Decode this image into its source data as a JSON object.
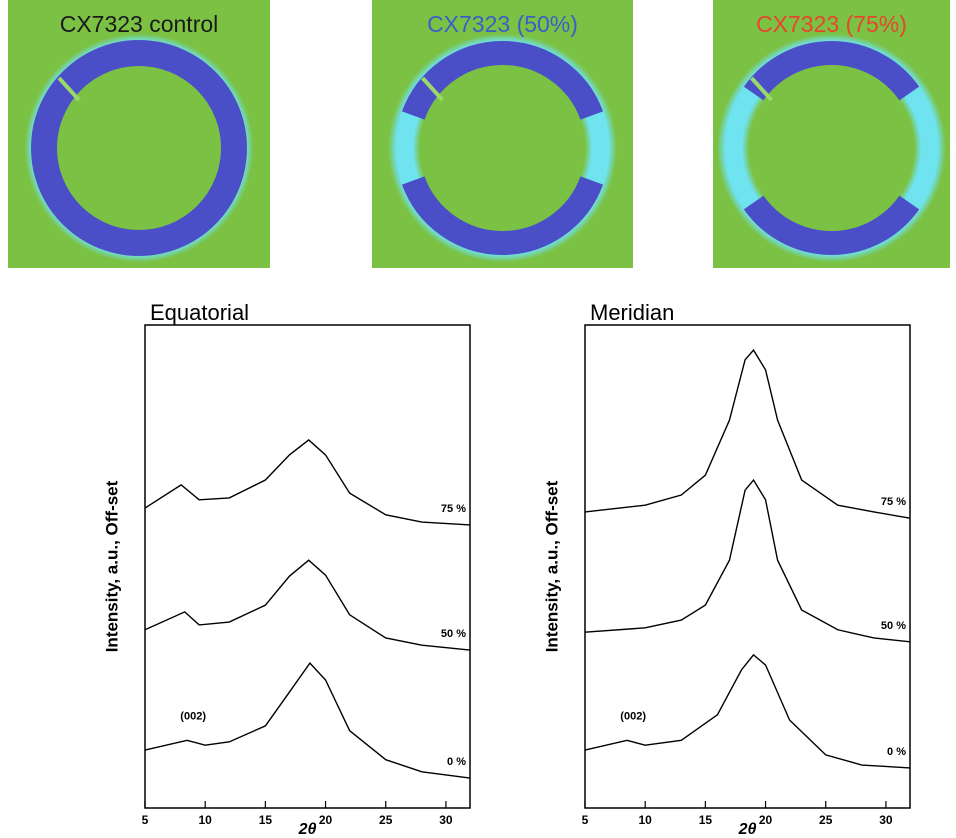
{
  "panels": [
    {
      "label": "CX7323 control",
      "color": "#1a1a1a"
    },
    {
      "label": "CX7323 (50%)",
      "color": "#3a5fc8"
    },
    {
      "label": "CX7323 (75%)",
      "color": "#e8452c"
    }
  ],
  "chart_data": [
    {
      "type": "line",
      "title": "Equatorial",
      "x_label": "2θ",
      "y_label": "Intensity, a.u., Off-set",
      "xlim": [
        5,
        32
      ],
      "xticks": [
        5,
        10,
        15,
        20,
        25,
        30
      ],
      "ylim": [
        0,
        100
      ],
      "annotation": "(002)",
      "color": "#000000",
      "series": [
        {
          "name": "0 %",
          "x": [
            5,
            8.5,
            10,
            12,
            15,
            17,
            18.7,
            20,
            22,
            25,
            28,
            32
          ],
          "values": [
            12,
            14,
            13,
            13.7,
            17,
            24,
            30,
            26.5,
            16,
            10,
            7.5,
            6.2
          ]
        },
        {
          "name": "50 %",
          "x": [
            5,
            8.3,
            9.5,
            12,
            15,
            17,
            18.6,
            20,
            22,
            25,
            28,
            32
          ],
          "values": [
            36.9,
            40.6,
            37.9,
            38.5,
            42,
            48,
            51.3,
            48.2,
            40,
            35.2,
            33.7,
            32.7
          ]
        },
        {
          "name": "75 %",
          "x": [
            5,
            8,
            9.5,
            12,
            15,
            17,
            18.6,
            20,
            22,
            25,
            28,
            32
          ],
          "values": [
            62.1,
            66.9,
            63.8,
            64.2,
            67.9,
            73.1,
            76.2,
            73.1,
            65.2,
            60.7,
            59.2,
            58.6
          ]
        }
      ]
    },
    {
      "type": "line",
      "title": "Meridian",
      "x_label": "2θ",
      "y_label": "Intensity, a.u., Off-set",
      "xlim": [
        5,
        32
      ],
      "xticks": [
        5,
        10,
        15,
        20,
        25,
        30
      ],
      "ylim": [
        0,
        100
      ],
      "annotation": "(002)",
      "color": "#000000",
      "series": [
        {
          "name": "0 %",
          "x": [
            5,
            8.5,
            10,
            13,
            16,
            18,
            19,
            20,
            22,
            25,
            28,
            32
          ],
          "values": [
            12,
            14,
            13,
            14,
            19.3,
            28.6,
            31.7,
            29.6,
            18.2,
            11,
            8.9,
            8.3
          ]
        },
        {
          "name": "50 %",
          "x": [
            5,
            10,
            13,
            15,
            17,
            18.3,
            19,
            20,
            21,
            23,
            26,
            29,
            32
          ],
          "values": [
            36.4,
            37.3,
            38.9,
            42,
            51.3,
            65.8,
            67.9,
            63.8,
            51.3,
            41,
            36.9,
            35.2,
            34.4
          ]
        },
        {
          "name": "75 %",
          "x": [
            5,
            10,
            13,
            15,
            17,
            18.3,
            19,
            20,
            21,
            23,
            26,
            29,
            32
          ],
          "values": [
            61.3,
            62.7,
            64.8,
            68.9,
            80.3,
            92.8,
            94.8,
            90.7,
            80.3,
            67.9,
            62.7,
            61.3,
            60
          ]
        }
      ]
    }
  ]
}
